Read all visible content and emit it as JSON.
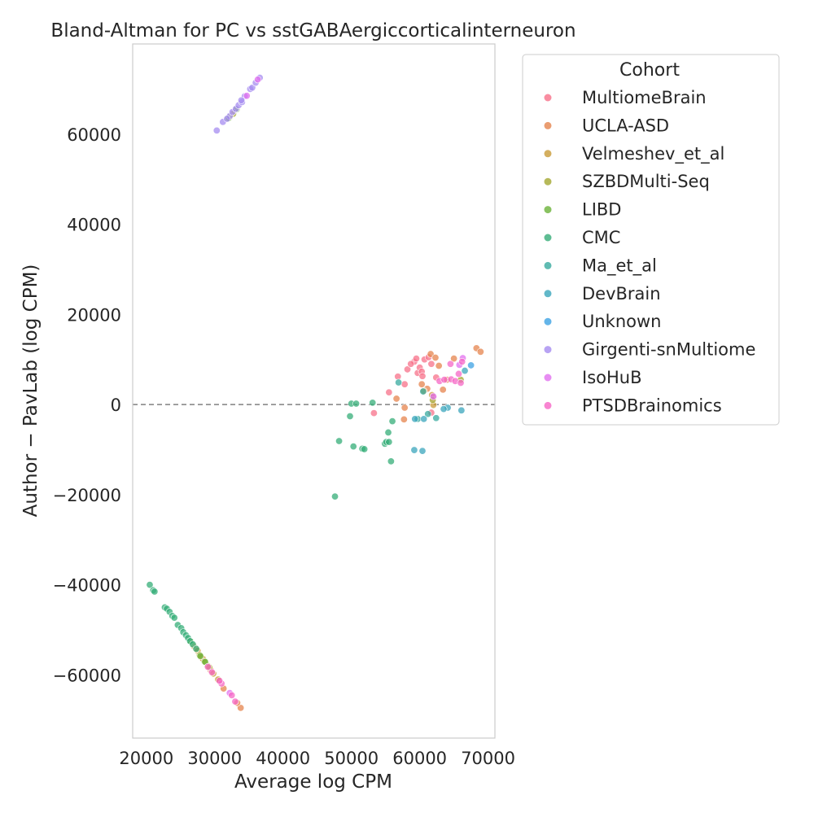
{
  "chart_data": {
    "type": "scatter",
    "title": "Bland-Altman for PC vs sstGABAergiccorticalinterneuron",
    "xlabel": "Average log CPM",
    "ylabel": "Author − PavLab (log CPM)",
    "xlim": [
      18000,
      71000
    ],
    "ylim": [
      -74000,
      80000
    ],
    "xticks": [
      20000,
      30000,
      40000,
      50000,
      60000,
      70000
    ],
    "yticks": [
      -60000,
      -40000,
      -20000,
      0,
      20000,
      40000,
      60000
    ],
    "grid": false,
    "reference_line": {
      "y": 0,
      "style": "dashed",
      "color": "#808080"
    },
    "legend": {
      "title": "Cohort",
      "placement": "outside-right"
    },
    "series": [
      {
        "name": "MultiomeBrain",
        "color": "#f77189",
        "points": [
          [
            55500,
            2700
          ],
          [
            56800,
            6200
          ],
          [
            57800,
            4500
          ],
          [
            58200,
            7800
          ],
          [
            59200,
            9500
          ],
          [
            59500,
            10200
          ],
          [
            59700,
            7000
          ],
          [
            60000,
            8200
          ],
          [
            60300,
            7300
          ],
          [
            60700,
            10000
          ],
          [
            61300,
            10500
          ],
          [
            61700,
            9000
          ],
          [
            62000,
            1500
          ],
          [
            61700,
            -1800
          ],
          [
            58700,
            9000
          ],
          [
            53300,
            -1900
          ],
          [
            62400,
            6000
          ],
          [
            60400,
            6300
          ]
        ]
      },
      {
        "name": "UCLA-ASD",
        "color": "#e5844e",
        "points": [
          [
            56600,
            1300
          ],
          [
            57800,
            -700
          ],
          [
            57700,
            -3300
          ],
          [
            60300,
            4500
          ],
          [
            61100,
            3500
          ],
          [
            61600,
            11200
          ],
          [
            62300,
            10400
          ],
          [
            62800,
            8600
          ],
          [
            63400,
            3300
          ],
          [
            64000,
            5500
          ],
          [
            65000,
            10200
          ],
          [
            68300,
            12500
          ],
          [
            68900,
            11700
          ],
          [
            33800,
            -67300
          ],
          [
            33300,
            -66200
          ],
          [
            31300,
            -63000
          ],
          [
            30600,
            -61200
          ],
          [
            29400,
            -58900
          ],
          [
            28100,
            -56200
          ],
          [
            27200,
            -54100
          ]
        ]
      },
      {
        "name": "Velmeshev_et_al",
        "color": "#c99b38",
        "points": [
          [
            61800,
            2100
          ],
          [
            62000,
            -100
          ],
          [
            60600,
            3000
          ],
          [
            27500,
            -54600
          ],
          [
            28300,
            -56500
          ],
          [
            29000,
            -58000
          ],
          [
            29800,
            -59700
          ],
          [
            30500,
            -61000
          ],
          [
            26900,
            -53500
          ]
        ]
      },
      {
        "name": "SZBDMulti-Seq",
        "color": "#a4a731",
        "points": [
          [
            66000,
            5500
          ],
          [
            61900,
            1000
          ],
          [
            28500,
            -57000
          ],
          [
            29200,
            -58300
          ],
          [
            27800,
            -55600
          ],
          [
            32200,
            63800
          ],
          [
            32700,
            64500
          ],
          [
            26600,
            -52800
          ]
        ]
      },
      {
        "name": "LIBD",
        "color": "#6bb339",
        "points": [
          [
            32000,
            63500
          ],
          [
            33200,
            65500
          ],
          [
            27900,
            -55800
          ],
          [
            28600,
            -57100
          ],
          [
            26500,
            -52600
          ]
        ]
      },
      {
        "name": "CMC",
        "color": "#36ad78",
        "points": [
          [
            47600,
            -20400
          ],
          [
            48200,
            -8100
          ],
          [
            49800,
            -2600
          ],
          [
            50000,
            200
          ],
          [
            50300,
            -9300
          ],
          [
            50700,
            200
          ],
          [
            51600,
            -9800
          ],
          [
            51900,
            -9900
          ],
          [
            53100,
            400
          ],
          [
            54900,
            -8700
          ],
          [
            55100,
            -8300
          ],
          [
            55400,
            -6200
          ],
          [
            55500,
            -8300
          ],
          [
            55800,
            -12600
          ],
          [
            56000,
            -3700
          ],
          [
            20500,
            -40000
          ],
          [
            21000,
            -41200
          ],
          [
            21200,
            -41500
          ],
          [
            22700,
            -45000
          ],
          [
            23000,
            -45300
          ],
          [
            23400,
            -46000
          ],
          [
            23800,
            -46900
          ],
          [
            24100,
            -47300
          ],
          [
            24600,
            -48900
          ],
          [
            25100,
            -49600
          ],
          [
            25400,
            -50500
          ],
          [
            25800,
            -51200
          ],
          [
            26100,
            -51800
          ],
          [
            26400,
            -52500
          ],
          [
            26800,
            -53200
          ],
          [
            27300,
            -54200
          ]
        ]
      },
      {
        "name": "Ma_et_al",
        "color": "#38aa9f",
        "points": [
          [
            56900,
            4900
          ],
          [
            61200,
            -2100
          ],
          [
            62400,
            -3000
          ],
          [
            60500,
            2900
          ],
          [
            59700,
            -3200
          ]
        ]
      },
      {
        "name": "DevBrain",
        "color": "#3ba6bc",
        "points": [
          [
            59300,
            -3200
          ],
          [
            60600,
            -3200
          ],
          [
            59200,
            -10100
          ],
          [
            60400,
            -10300
          ],
          [
            64100,
            -700
          ],
          [
            63500,
            -1000
          ],
          [
            66100,
            -1300
          ],
          [
            66600,
            7500
          ]
        ]
      },
      {
        "name": "Unknown",
        "color": "#3da2e3",
        "points": [
          [
            67500,
            8700
          ]
        ]
      },
      {
        "name": "Girgenti-snMultiome",
        "color": "#a68cf0",
        "points": [
          [
            30300,
            60800
          ],
          [
            31200,
            62700
          ],
          [
            32200,
            64000
          ],
          [
            32600,
            64900
          ],
          [
            33100,
            65600
          ],
          [
            33500,
            66400
          ],
          [
            34000,
            67100
          ],
          [
            34400,
            68400
          ],
          [
            35200,
            70000
          ],
          [
            35500,
            70300
          ],
          [
            36000,
            71400
          ],
          [
            36600,
            72500
          ],
          [
            33900,
            67500
          ],
          [
            31800,
            63400
          ]
        ]
      },
      {
        "name": "IsoHuB",
        "color": "#e170ef",
        "points": [
          [
            36300,
            72100
          ],
          [
            34700,
            68500
          ],
          [
            65800,
            8800
          ],
          [
            66300,
            10300
          ],
          [
            62000,
            1800
          ],
          [
            32200,
            -64000
          ]
        ]
      },
      {
        "name": "PTSDBrainomics",
        "color": "#f667c6",
        "points": [
          [
            62900,
            5200
          ],
          [
            63600,
            5500
          ],
          [
            64500,
            9000
          ],
          [
            64600,
            5600
          ],
          [
            65200,
            5200
          ],
          [
            65700,
            6800
          ],
          [
            66200,
            9500
          ],
          [
            66000,
            4800
          ],
          [
            31000,
            -61900
          ],
          [
            30700,
            -61300
          ],
          [
            29600,
            -59400
          ],
          [
            29000,
            -58200
          ],
          [
            33000,
            -65900
          ],
          [
            32500,
            -64500
          ]
        ]
      }
    ]
  }
}
